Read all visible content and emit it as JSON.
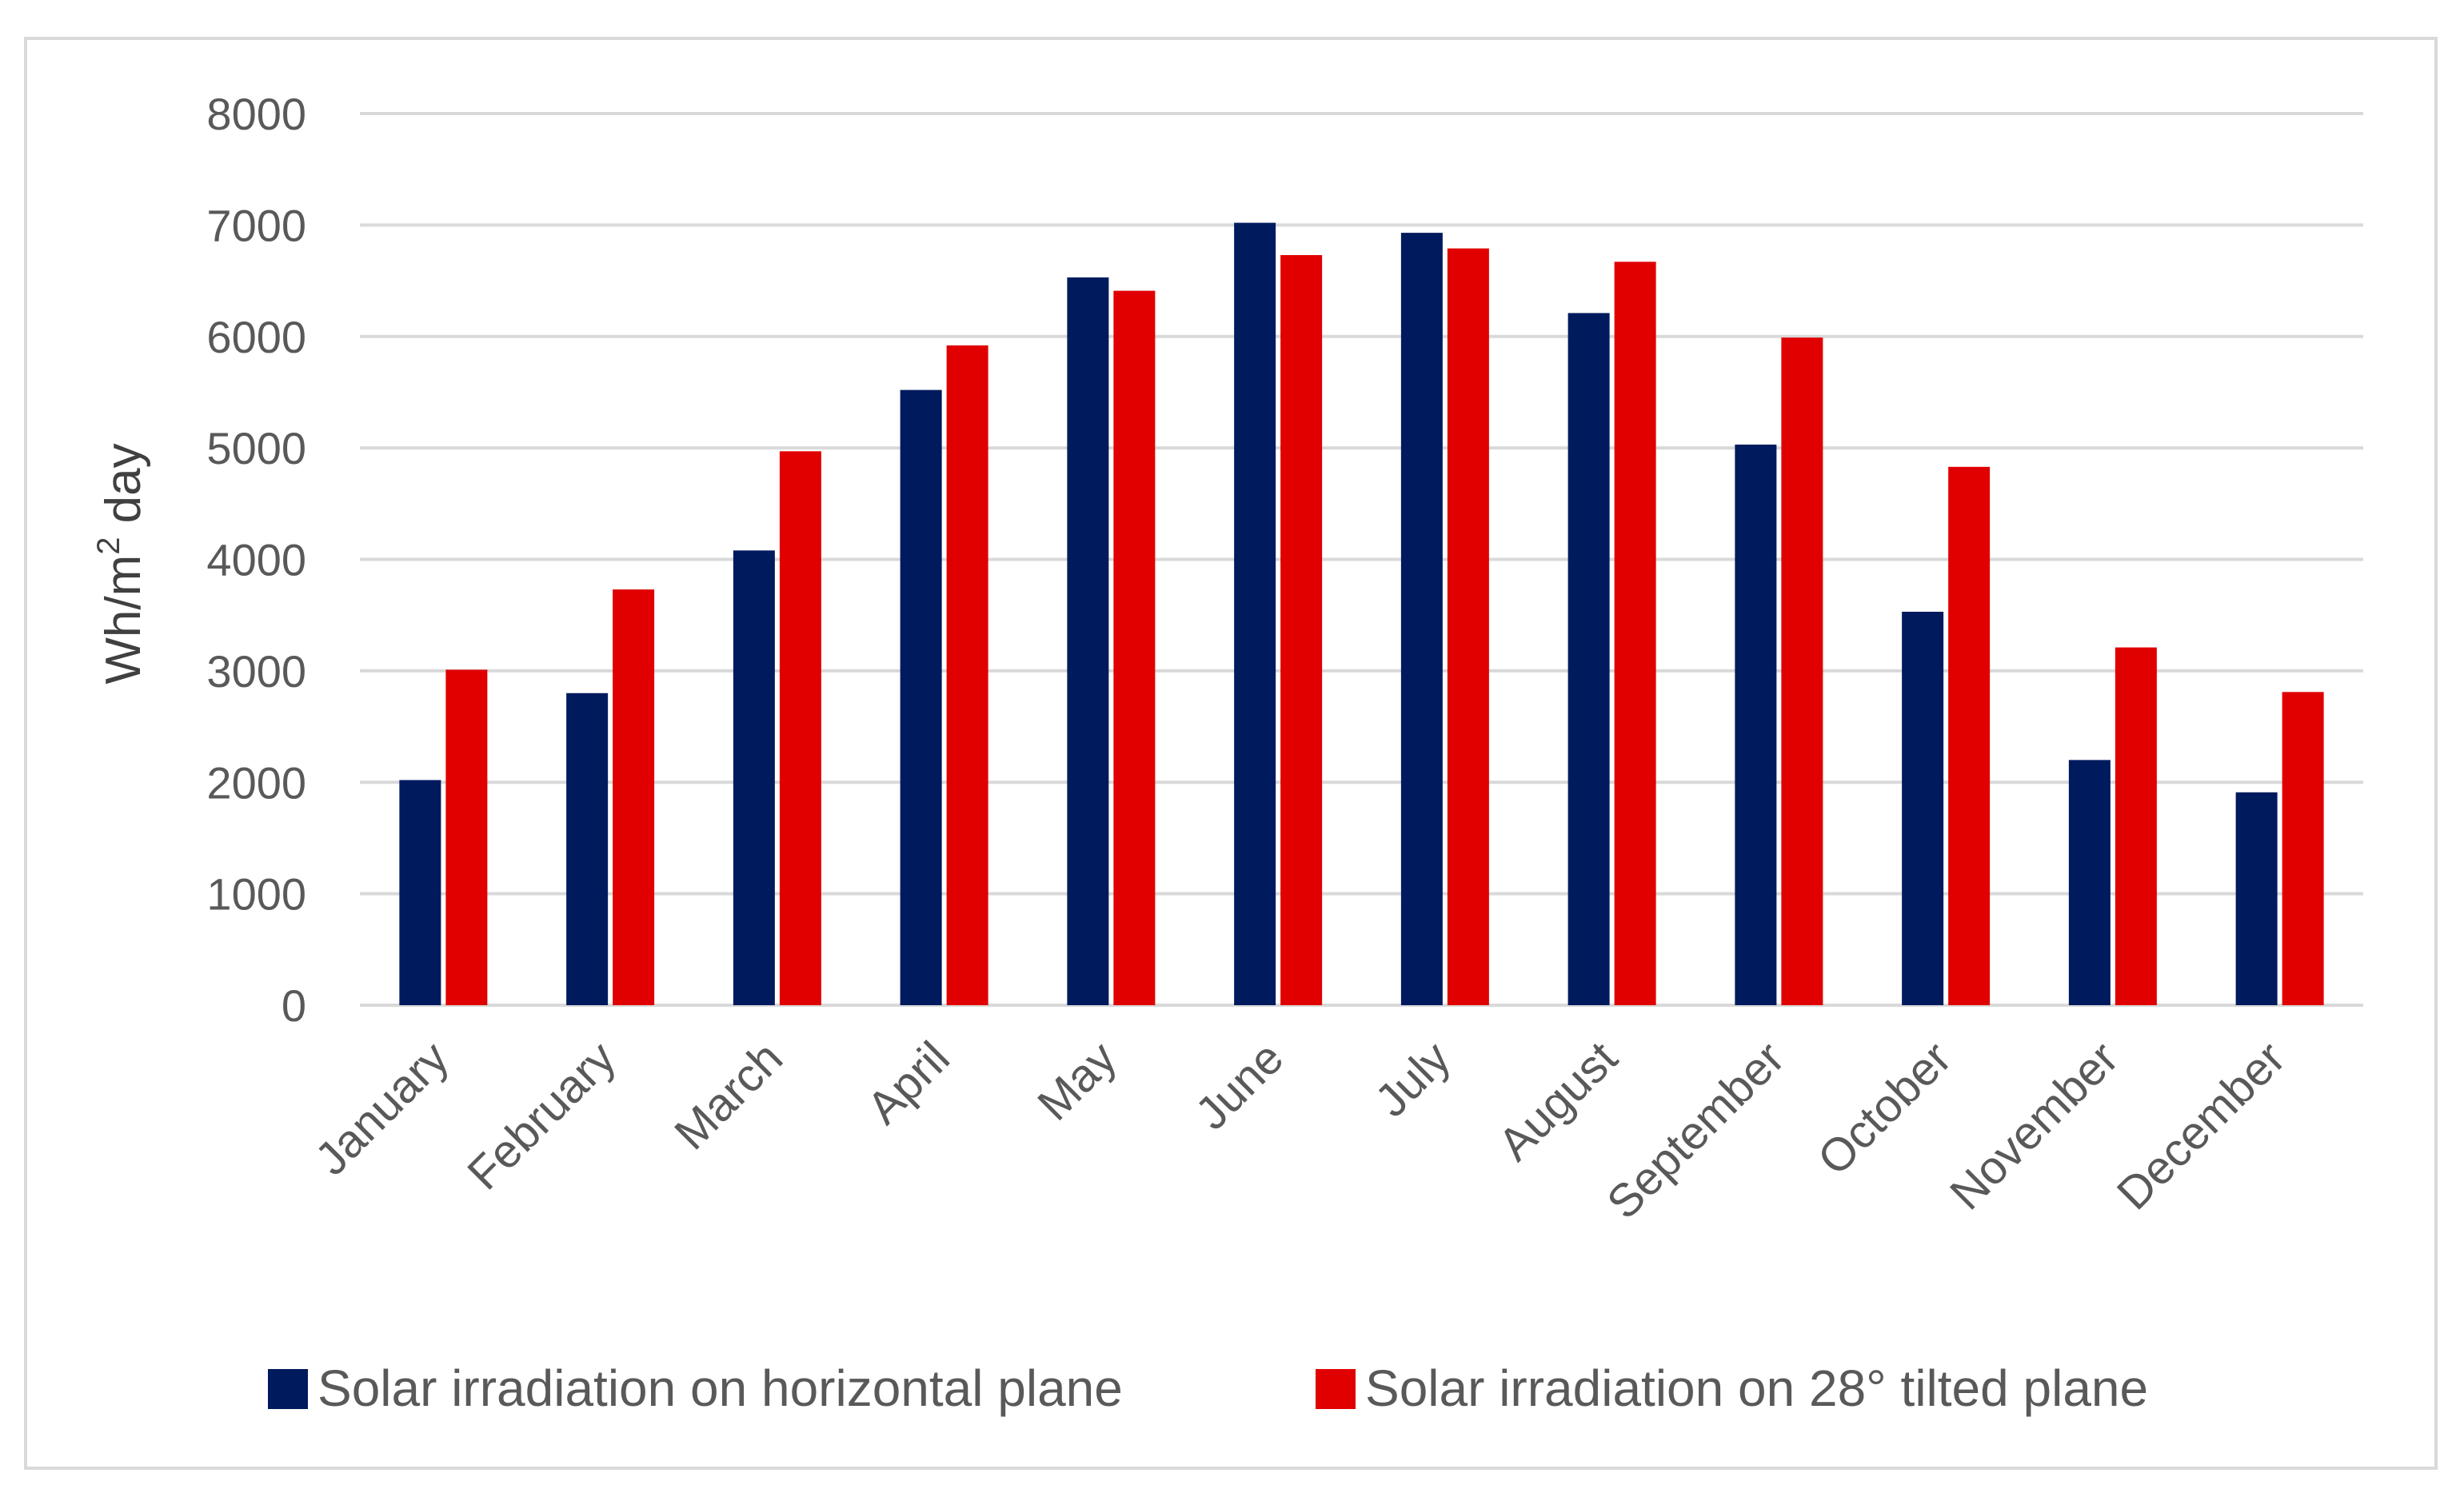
{
  "chart_data": {
    "type": "bar",
    "title": "",
    "xlabel": "",
    "ylabel": "Wh/m² day",
    "ylim": [
      0,
      8000
    ],
    "yticks": [
      0,
      1000,
      2000,
      3000,
      4000,
      5000,
      6000,
      7000,
      8000
    ],
    "grid": true,
    "legend_position": "bottom",
    "categories": [
      "January",
      "February",
      "March",
      "April",
      "May",
      "June",
      "July",
      "August",
      "September",
      "October",
      "November",
      "December"
    ],
    "series": [
      {
        "name": "Solar irradiation on horizontal plane",
        "color": "#001a5e",
        "values": [
          2020,
          2800,
          4080,
          5520,
          6530,
          7020,
          6930,
          6210,
          5030,
          3530,
          2200,
          1910
        ]
      },
      {
        "name": "Solar irradiation on 28° tilted plane",
        "color": "#e00000",
        "values": [
          3010,
          3730,
          4970,
          5920,
          6410,
          6730,
          6790,
          6670,
          5990,
          4830,
          3210,
          2810
        ]
      }
    ]
  }
}
